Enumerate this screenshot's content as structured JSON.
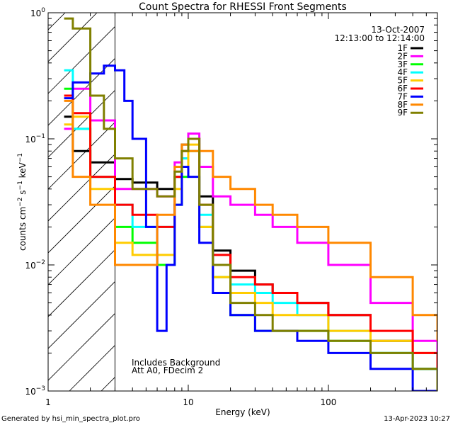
{
  "chart_data": {
    "type": "line",
    "title": "Count Spectra for RHESSI Front Segments",
    "xlabel": "Energy (keV)",
    "ylabel": "counts cm^-2 s^-1 keV^-1",
    "ylabel_parts": {
      "base": "counts cm",
      "exp1": "−2",
      "mid": " s",
      "exp2": "−1",
      "mid2": " keV",
      "exp3": "−1"
    },
    "xscale": "log",
    "yscale": "log",
    "xlim": [
      1,
      600
    ],
    "ylim": [
      0.001,
      1.0
    ],
    "x_ticks": [
      {
        "value": 1,
        "label": "1"
      },
      {
        "value": 10,
        "label": "10"
      },
      {
        "value": 100,
        "label": "100"
      }
    ],
    "y_ticks": [
      {
        "value": 1.0,
        "base": "10",
        "exp": "0"
      },
      {
        "value": 0.1,
        "base": "10",
        "exp": "−1"
      },
      {
        "value": 0.01,
        "base": "10",
        "exp": "−2"
      },
      {
        "value": 0.001,
        "base": "10",
        "exp": "−3"
      }
    ],
    "date": "13-Oct-2007",
    "time_range": "12:13:00 to 12:14:00",
    "hatched_region_xmax": 3.0,
    "annotations": [
      "Includes Background",
      "Att A0, FDecim 2"
    ],
    "legend_position": "top-right",
    "series": [
      {
        "name": "1F",
        "color": "#000000",
        "values": [
          [
            1.3,
            0.15
          ],
          [
            1.5,
            0.08
          ],
          [
            2,
            0.065
          ],
          [
            3,
            0.048
          ],
          [
            4,
            0.045
          ],
          [
            6,
            0.04
          ],
          [
            8,
            0.05
          ],
          [
            9,
            0.09
          ],
          [
            10,
            0.1
          ],
          [
            12,
            0.035
          ],
          [
            15,
            0.013
          ],
          [
            20,
            0.009
          ],
          [
            30,
            0.007
          ],
          [
            40,
            0.006
          ],
          [
            60,
            0.005
          ],
          [
            100,
            0.004
          ],
          [
            200,
            0.0025
          ],
          [
            400,
            0.0015
          ],
          [
            600,
            0.001
          ]
        ]
      },
      {
        "name": "2F",
        "color": "#ff00ff",
        "values": [
          [
            1.3,
            0.12
          ],
          [
            1.5,
            0.25
          ],
          [
            2,
            0.14
          ],
          [
            3,
            0.04
          ],
          [
            4,
            0.04
          ],
          [
            6,
            0.035
          ],
          [
            8,
            0.065
          ],
          [
            9,
            0.07
          ],
          [
            10,
            0.11
          ],
          [
            12,
            0.06
          ],
          [
            15,
            0.035
          ],
          [
            20,
            0.03
          ],
          [
            30,
            0.025
          ],
          [
            40,
            0.02
          ],
          [
            60,
            0.015
          ],
          [
            100,
            0.01
          ],
          [
            200,
            0.005
          ],
          [
            400,
            0.0025
          ],
          [
            600,
            0.0015
          ]
        ]
      },
      {
        "name": "3F",
        "color": "#00ff00",
        "values": [
          [
            1.3,
            0.25
          ],
          [
            1.5,
            0.12
          ],
          [
            2,
            0.05
          ],
          [
            3,
            0.02
          ],
          [
            4,
            0.015
          ],
          [
            6,
            0.01
          ],
          [
            8,
            0.03
          ],
          [
            9,
            0.05
          ],
          [
            10,
            0.08
          ],
          [
            12,
            0.02
          ],
          [
            15,
            0.008
          ],
          [
            20,
            0.004
          ],
          [
            30,
            0.003
          ],
          [
            40,
            0.003
          ],
          [
            60,
            0.003
          ],
          [
            100,
            0.0025
          ],
          [
            200,
            0.002
          ],
          [
            400,
            0.0015
          ],
          [
            600,
            0.001
          ]
        ]
      },
      {
        "name": "4F",
        "color": "#00ffff",
        "values": [
          [
            1.3,
            0.35
          ],
          [
            1.5,
            0.12
          ],
          [
            2,
            0.05
          ],
          [
            3,
            0.03
          ],
          [
            4,
            0.02
          ],
          [
            6,
            0.02
          ],
          [
            8,
            0.05
          ],
          [
            9,
            0.07
          ],
          [
            10,
            0.1
          ],
          [
            12,
            0.025
          ],
          [
            15,
            0.01
          ],
          [
            20,
            0.007
          ],
          [
            30,
            0.006
          ],
          [
            40,
            0.005
          ],
          [
            60,
            0.004
          ],
          [
            100,
            0.003
          ],
          [
            200,
            0.002
          ],
          [
            400,
            0.0015
          ],
          [
            600,
            0.001
          ]
        ]
      },
      {
        "name": "5F",
        "color": "#ffcc00",
        "values": [
          [
            1.3,
            0.13
          ],
          [
            1.5,
            0.15
          ],
          [
            2,
            0.04
          ],
          [
            3,
            0.015
          ],
          [
            4,
            0.012
          ],
          [
            6,
            0.012
          ],
          [
            8,
            0.04
          ],
          [
            9,
            0.06
          ],
          [
            10,
            0.09
          ],
          [
            12,
            0.02
          ],
          [
            15,
            0.008
          ],
          [
            20,
            0.006
          ],
          [
            30,
            0.005
          ],
          [
            40,
            0.004
          ],
          [
            60,
            0.004
          ],
          [
            100,
            0.003
          ],
          [
            200,
            0.0025
          ],
          [
            400,
            0.002
          ],
          [
            600,
            0.0012
          ]
        ]
      },
      {
        "name": "6F",
        "color": "#ff0000",
        "values": [
          [
            1.3,
            0.22
          ],
          [
            1.5,
            0.16
          ],
          [
            2,
            0.05
          ],
          [
            3,
            0.03
          ],
          [
            4,
            0.025
          ],
          [
            6,
            0.02
          ],
          [
            8,
            0.05
          ],
          [
            9,
            0.08
          ],
          [
            10,
            0.1
          ],
          [
            12,
            0.03
          ],
          [
            15,
            0.012
          ],
          [
            20,
            0.008
          ],
          [
            30,
            0.007
          ],
          [
            40,
            0.006
          ],
          [
            60,
            0.005
          ],
          [
            100,
            0.004
          ],
          [
            200,
            0.003
          ],
          [
            400,
            0.002
          ],
          [
            600,
            0.0012
          ]
        ]
      },
      {
        "name": "7F",
        "color": "#0000ff",
        "values": [
          [
            1.3,
            0.21
          ],
          [
            1.5,
            0.28
          ],
          [
            2,
            0.33
          ],
          [
            2.5,
            0.38
          ],
          [
            3,
            0.35
          ],
          [
            3.5,
            0.2
          ],
          [
            4,
            0.1
          ],
          [
            5,
            0.02
          ],
          [
            6,
            0.003
          ],
          [
            7,
            0.01
          ],
          [
            8,
            0.03
          ],
          [
            9,
            0.06
          ],
          [
            10,
            0.05
          ],
          [
            12,
            0.015
          ],
          [
            15,
            0.006
          ],
          [
            20,
            0.004
          ],
          [
            30,
            0.003
          ],
          [
            40,
            0.003
          ],
          [
            60,
            0.0025
          ],
          [
            100,
            0.002
          ],
          [
            200,
            0.0015
          ],
          [
            400,
            0.001
          ],
          [
            600,
            0.001
          ]
        ]
      },
      {
        "name": "8F",
        "color": "#ff8800",
        "values": [
          [
            1.3,
            0.2
          ],
          [
            1.5,
            0.05
          ],
          [
            2,
            0.03
          ],
          [
            3,
            0.01
          ],
          [
            4,
            0.01
          ],
          [
            6,
            0.025
          ],
          [
            8,
            0.06
          ],
          [
            9,
            0.09
          ],
          [
            10,
            0.08
          ],
          [
            12,
            0.08
          ],
          [
            15,
            0.05
          ],
          [
            20,
            0.04
          ],
          [
            30,
            0.03
          ],
          [
            40,
            0.025
          ],
          [
            60,
            0.02
          ],
          [
            100,
            0.015
          ],
          [
            200,
            0.008
          ],
          [
            400,
            0.004
          ],
          [
            600,
            0.0025
          ]
        ]
      },
      {
        "name": "9F",
        "color": "#808000",
        "values": [
          [
            1.3,
            0.9
          ],
          [
            1.5,
            0.75
          ],
          [
            2,
            0.22
          ],
          [
            2.5,
            0.12
          ],
          [
            3,
            0.07
          ],
          [
            4,
            0.04
          ],
          [
            6,
            0.035
          ],
          [
            8,
            0.055
          ],
          [
            9,
            0.08
          ],
          [
            10,
            0.1
          ],
          [
            12,
            0.03
          ],
          [
            15,
            0.01
          ],
          [
            20,
            0.005
          ],
          [
            30,
            0.004
          ],
          [
            40,
            0.003
          ],
          [
            60,
            0.003
          ],
          [
            100,
            0.0025
          ],
          [
            200,
            0.002
          ],
          [
            400,
            0.0015
          ],
          [
            600,
            0.001
          ]
        ]
      }
    ]
  },
  "footer": {
    "generated_by": "Generated by hsi_min_spectra_plot.pro",
    "timestamp": "13-Apr-2023 10:27"
  }
}
